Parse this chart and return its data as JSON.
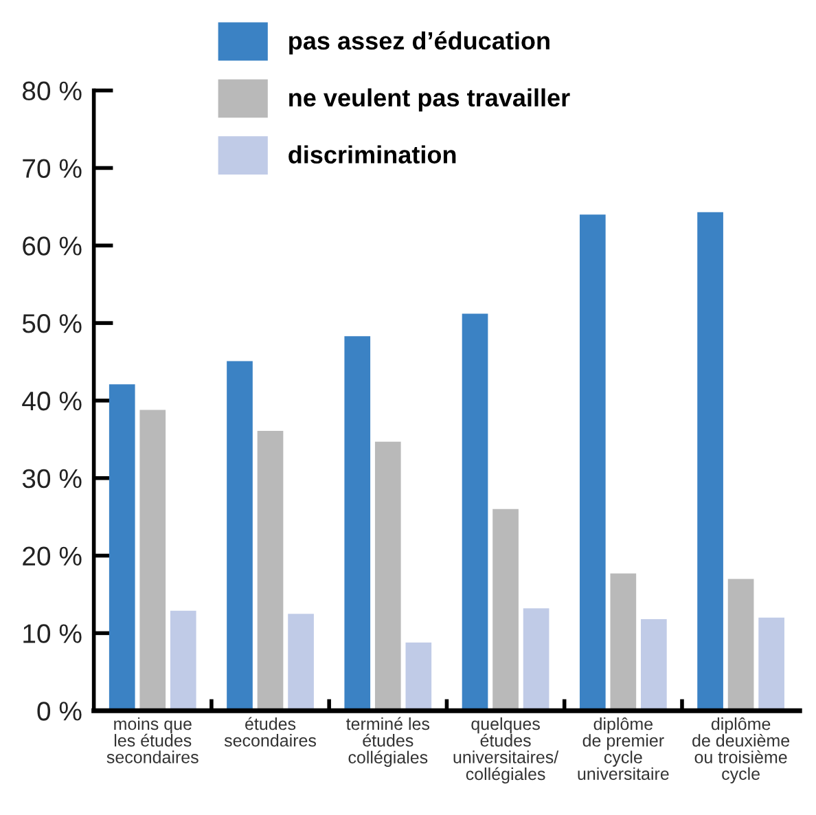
{
  "chart_data": {
    "type": "bar",
    "categories": [
      "moins que\nles études\nsecondaires",
      "études\nsecondaires",
      "terminé les\nétudes\ncollégiales",
      "quelques\nétudes\nuniversitaires/\ncollégiales",
      "diplôme\nde premier\ncycle\nuniversitaire",
      "diplôme\nde deuxième\nou troisième\ncycle"
    ],
    "series": [
      {
        "name": "pas assez d’éducation",
        "color": "#3b82c4",
        "values": [
          42.1,
          45.1,
          48.3,
          51.2,
          64.0,
          64.3
        ]
      },
      {
        "name": "ne veulent pas travailler",
        "color": "#b9b9b9",
        "values": [
          38.8,
          36.1,
          34.7,
          26.0,
          17.7,
          17.0
        ]
      },
      {
        "name": "discrimination",
        "color": "#c0cbe7",
        "values": [
          12.9,
          12.5,
          8.8,
          13.2,
          11.8,
          12.0
        ]
      }
    ],
    "ylim": [
      0,
      80
    ],
    "yticks": [
      {
        "value": 0,
        "label": "0 %"
      },
      {
        "value": 10,
        "label": "10 %"
      },
      {
        "value": 20,
        "label": "20 %"
      },
      {
        "value": 30,
        "label": "30 %"
      },
      {
        "value": 40,
        "label": "40 %"
      },
      {
        "value": 50,
        "label": "50 %"
      },
      {
        "value": 60,
        "label": "60 %"
      },
      {
        "value": 70,
        "label": "70 %"
      },
      {
        "value": 80,
        "label": "80 %"
      }
    ],
    "grid": false,
    "legend": "top"
  }
}
